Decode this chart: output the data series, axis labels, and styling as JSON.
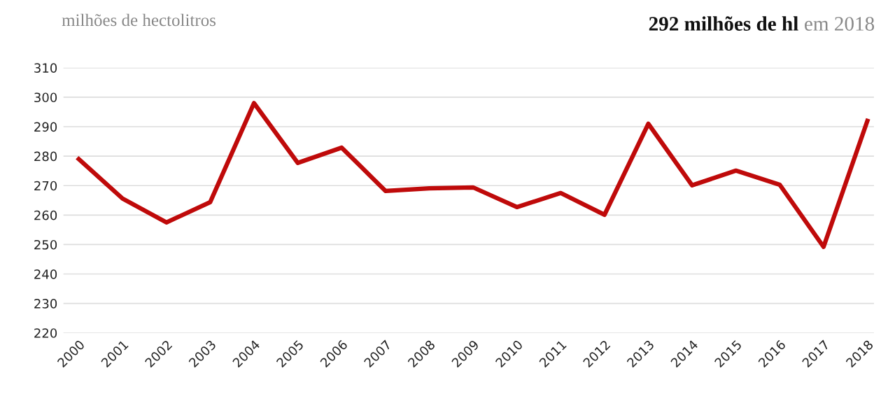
{
  "chart_data": {
    "type": "line",
    "title": "292 milhões de hl",
    "subtitle": "em 2018",
    "ylabel": "milhões de hectolitros",
    "categories": [
      "2000",
      "2001",
      "2002",
      "2003",
      "2004",
      "2005",
      "2006",
      "2007",
      "2008",
      "2009",
      "2010",
      "2011",
      "2012",
      "2013",
      "2014",
      "2015",
      "2016",
      "2017",
      "2018"
    ],
    "series": [
      {
        "color": "#bf0a0a",
        "values": [
          279,
          265.6,
          257.5,
          264.4,
          298,
          277.7,
          282.9,
          268.2,
          269.1,
          269.4,
          262.7,
          267.5,
          260.1,
          291,
          270.1,
          275.1,
          270.3,
          249.2,
          292
        ]
      }
    ],
    "ylim": [
      220,
      310
    ],
    "yticks": [
      220,
      230,
      240,
      250,
      260,
      270,
      280,
      290,
      300,
      310
    ],
    "grid": "y",
    "marker": "none",
    "line_style": "solid"
  }
}
